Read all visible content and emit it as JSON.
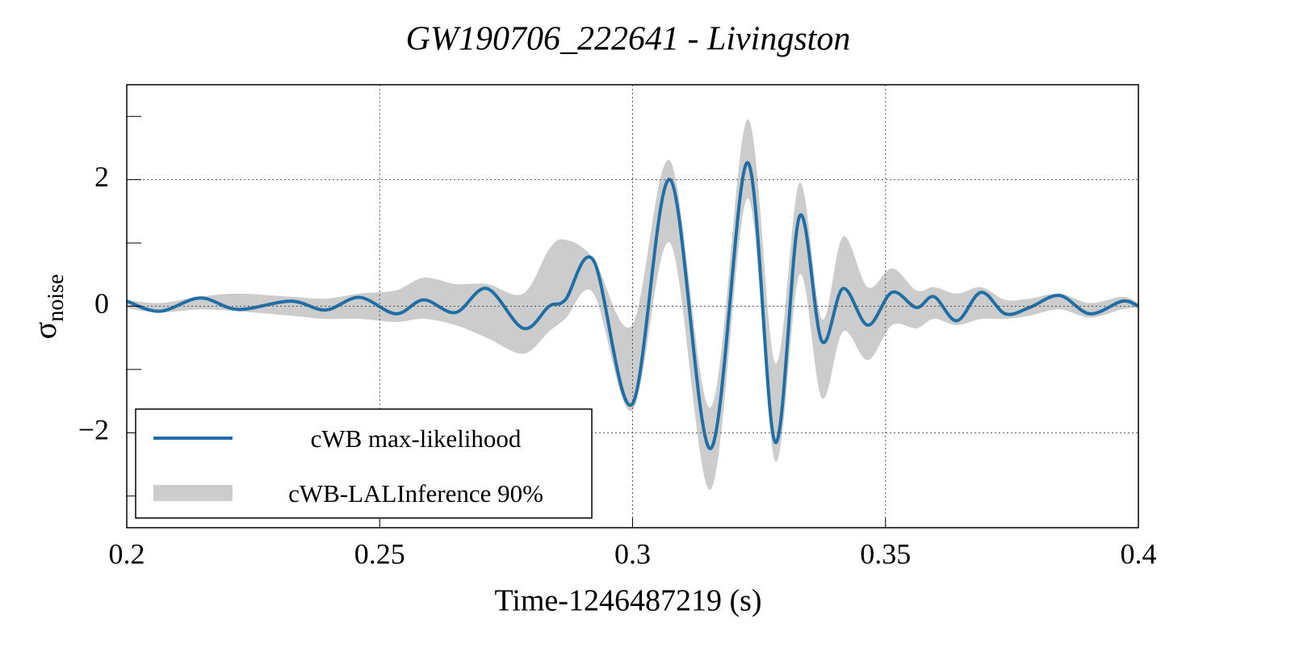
{
  "chart_data": {
    "type": "line",
    "title": "GW190706_222641 - Livingston",
    "xlabel": "Time-1246487219 (s)",
    "ylabel": {
      "symbol": "σ",
      "subscript": "noise"
    },
    "xlim": [
      0.2,
      0.4
    ],
    "ylim": [
      -3.5,
      3.5
    ],
    "xticks": [
      0.2,
      0.25,
      0.3,
      0.35,
      0.4
    ],
    "yticks": [
      {
        "value": -2,
        "label": "−2"
      },
      0,
      2
    ],
    "yminorticks": [
      -3,
      -1,
      1,
      3
    ],
    "grid": true,
    "legend": "lower left",
    "x": [
      0.2,
      0.2065,
      0.2145,
      0.222,
      0.2324,
      0.2393,
      0.246,
      0.2532,
      0.2587,
      0.265,
      0.2712,
      0.2784,
      0.2835,
      0.2867,
      0.2923,
      0.2999,
      0.3074,
      0.3154,
      0.3227,
      0.3282,
      0.333,
      0.3374,
      0.3416,
      0.3465,
      0.3513,
      0.3561,
      0.3596,
      0.3641,
      0.3689,
      0.3737,
      0.3785,
      0.3844,
      0.3904,
      0.3968,
      0.4
    ],
    "series": [
      {
        "name": "cWB max-likelihood",
        "type": "line",
        "color": "#1f6fa6",
        "values": [
          0.08,
          -0.08,
          0.13,
          -0.05,
          0.08,
          -0.06,
          0.14,
          -0.12,
          0.1,
          -0.1,
          0.28,
          -0.35,
          0.0,
          0.1,
          0.72,
          -1.55,
          2.0,
          -2.25,
          2.27,
          -2.15,
          1.42,
          -0.55,
          0.28,
          -0.3,
          0.22,
          -0.02,
          0.15,
          -0.23,
          0.22,
          -0.12,
          -0.02,
          0.17,
          -0.12,
          0.08,
          0.0
        ]
      },
      {
        "name": "cWB-LALInference 90%",
        "type": "band",
        "color": "#cccccc",
        "lower": [
          -0.03,
          -0.1,
          -0.05,
          -0.08,
          -0.15,
          -0.2,
          -0.2,
          -0.25,
          -0.2,
          -0.3,
          -0.5,
          -0.75,
          -0.4,
          -0.2,
          0.2,
          -1.65,
          1.0,
          -2.9,
          1.7,
          -2.45,
          0.5,
          -1.45,
          -0.4,
          -0.85,
          -0.3,
          -0.35,
          -0.2,
          -0.3,
          -0.2,
          -0.2,
          -0.15,
          -0.05,
          -0.18,
          -0.05,
          -0.02
        ],
        "upper": [
          0.1,
          0.05,
          0.15,
          0.2,
          0.15,
          0.12,
          0.2,
          0.25,
          0.45,
          0.35,
          0.35,
          0.2,
          0.9,
          1.05,
          0.75,
          -0.3,
          2.3,
          -1.6,
          2.95,
          -0.9,
          1.95,
          -0.2,
          1.1,
          0.3,
          0.6,
          0.25,
          0.3,
          0.2,
          0.3,
          0.1,
          0.12,
          0.2,
          0.05,
          0.15,
          0.05
        ]
      }
    ]
  }
}
